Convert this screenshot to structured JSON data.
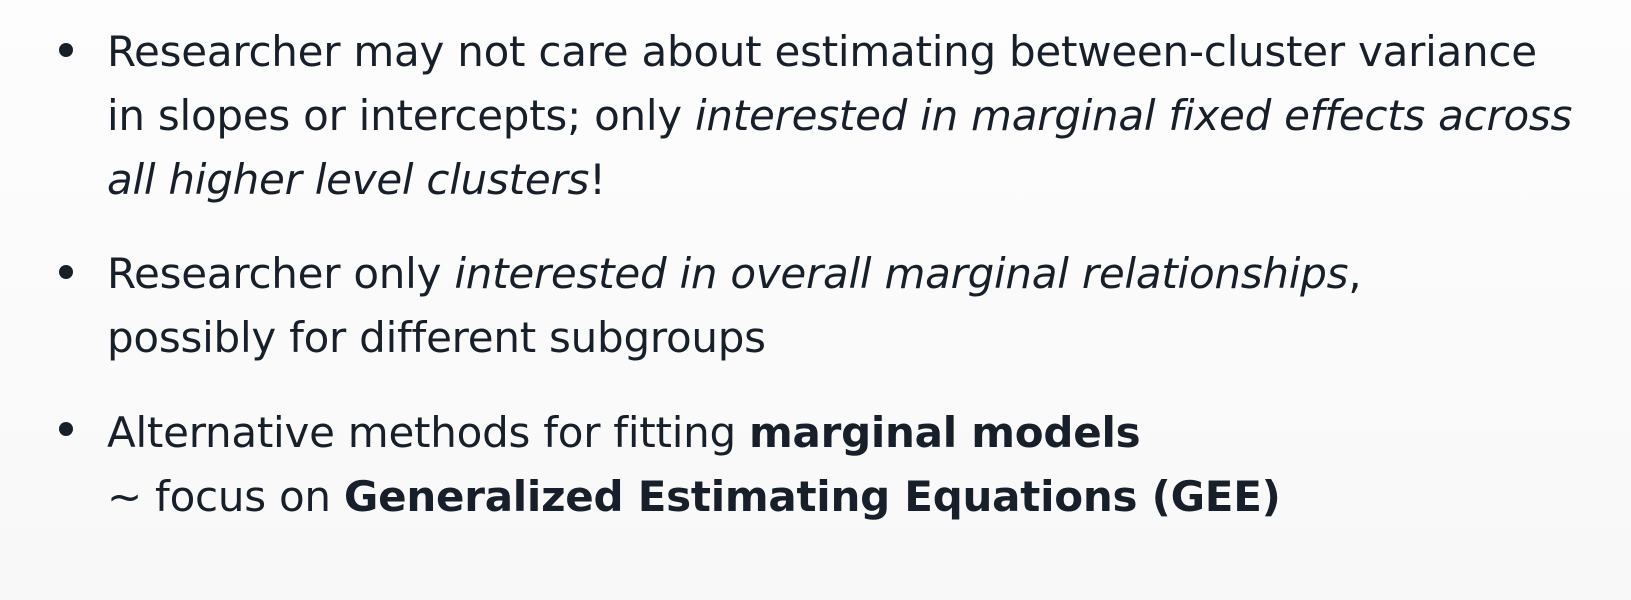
{
  "slide": {
    "bullets": [
      {
        "lines": [
          [
            {
              "text": "Researcher may not care about estimating between-cluster variance"
            }
          ],
          [
            {
              "text": "in slopes or intercepts; only "
            },
            {
              "text": "interested in marginal fixed effects across"
            }
          ],
          [
            {
              "text": "all higher level clusters"
            },
            {
              "text": "!"
            }
          ]
        ]
      },
      {
        "lines": [
          [
            {
              "text": "Researcher only "
            },
            {
              "text": "interested in overall marginal relationships"
            },
            {
              "text": ","
            }
          ],
          [
            {
              "text": "possibly for different subgroups"
            }
          ]
        ]
      },
      {
        "lines": [
          [
            {
              "text": "Alternative methods for fitting "
            },
            {
              "text": "marginal models"
            }
          ],
          [
            {
              "text": "~ focus on "
            },
            {
              "text": "Generalized Estimating Equations (GEE)"
            }
          ]
        ]
      }
    ]
  }
}
